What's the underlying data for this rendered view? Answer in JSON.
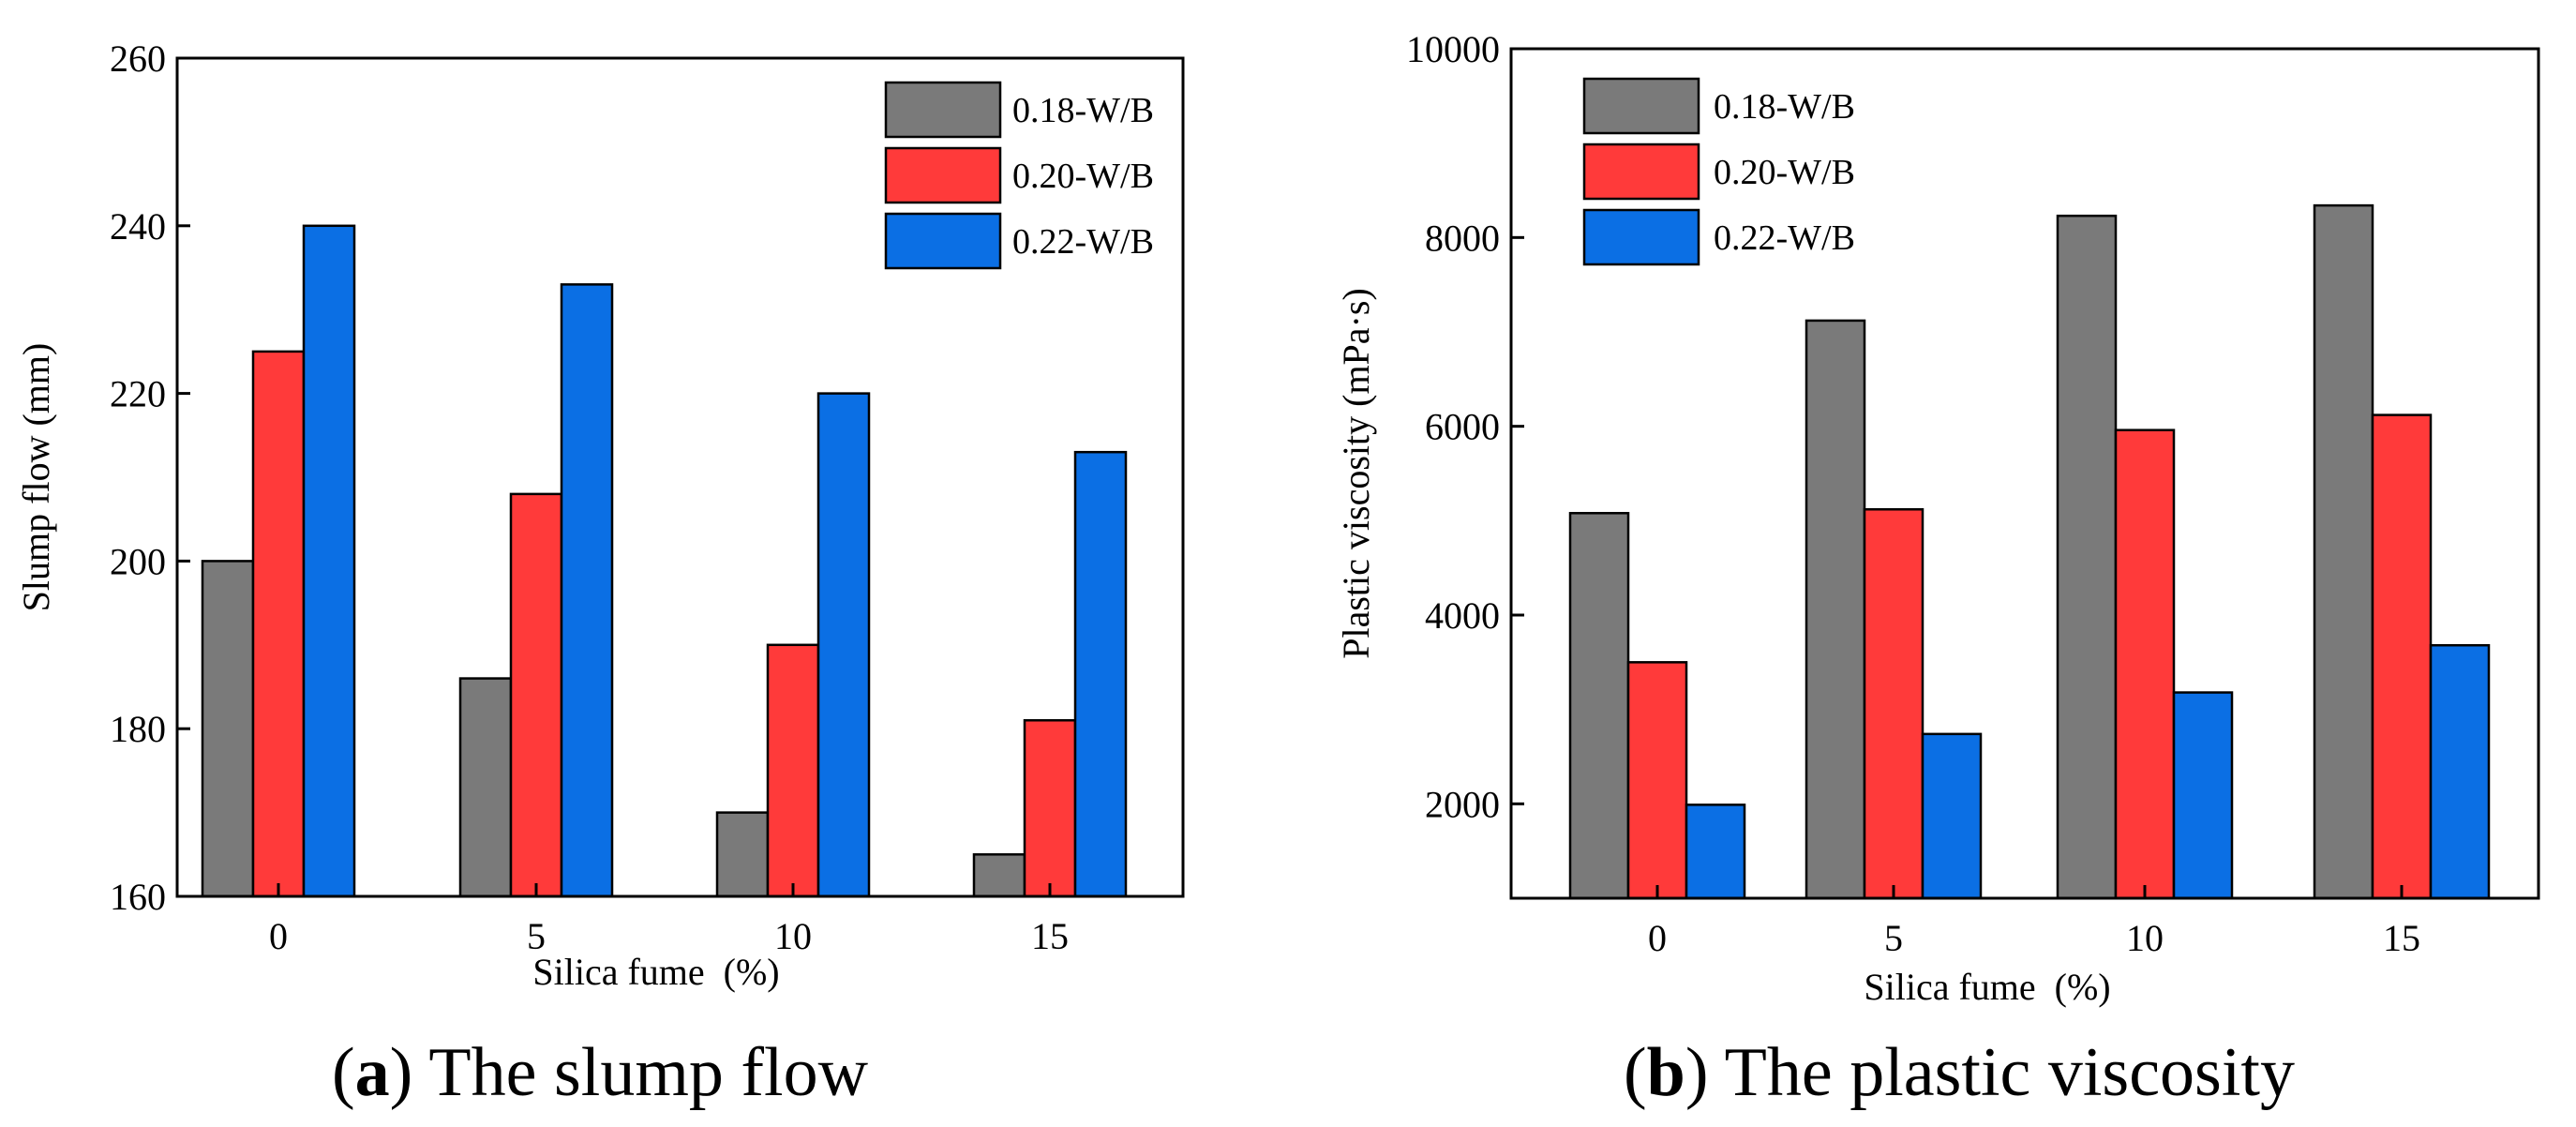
{
  "colors": {
    "0.18-W/B": "#7a7a7a",
    "0.20-W/B": "#ff3a3a",
    "0.22-W/B": "#0b6fe4"
  },
  "chart_data": [
    {
      "id": "a",
      "type": "bar",
      "categories": [
        "0",
        "5",
        "10",
        "15"
      ],
      "series": [
        {
          "name": "0.18-W/B",
          "values": [
            200,
            186,
            170,
            165
          ]
        },
        {
          "name": "0.20-W/B",
          "values": [
            225,
            208,
            190,
            181
          ]
        },
        {
          "name": "0.22-W/B",
          "values": [
            240,
            233,
            220,
            213
          ]
        }
      ],
      "xlabel": "Silica fume  (%)",
      "ylabel": "Slump flow (mm)",
      "ylim": [
        160,
        260
      ],
      "yticks": [
        160,
        180,
        200,
        220,
        240,
        260
      ],
      "legend_position": "top-right",
      "caption_letter": "a",
      "caption_text": "The slump flow"
    },
    {
      "id": "b",
      "type": "bar",
      "categories": [
        "0",
        "5",
        "10",
        "15"
      ],
      "series": [
        {
          "name": "0.18-W/B",
          "values": [
            5080,
            7120,
            8230,
            8340
          ]
        },
        {
          "name": "0.20-W/B",
          "values": [
            3500,
            5120,
            5960,
            6120
          ]
        },
        {
          "name": "0.22-W/B",
          "values": [
            1990,
            2740,
            3180,
            3680
          ]
        }
      ],
      "xlabel": "Silica fume  (%)",
      "ylabel": "Plastic viscosity (mPa·s)",
      "ylim": [
        1000,
        10000
      ],
      "yticks": [
        2000,
        4000,
        6000,
        8000,
        10000
      ],
      "legend_position": "top-left",
      "caption_letter": "b",
      "caption_text": "The plastic viscosity"
    }
  ]
}
